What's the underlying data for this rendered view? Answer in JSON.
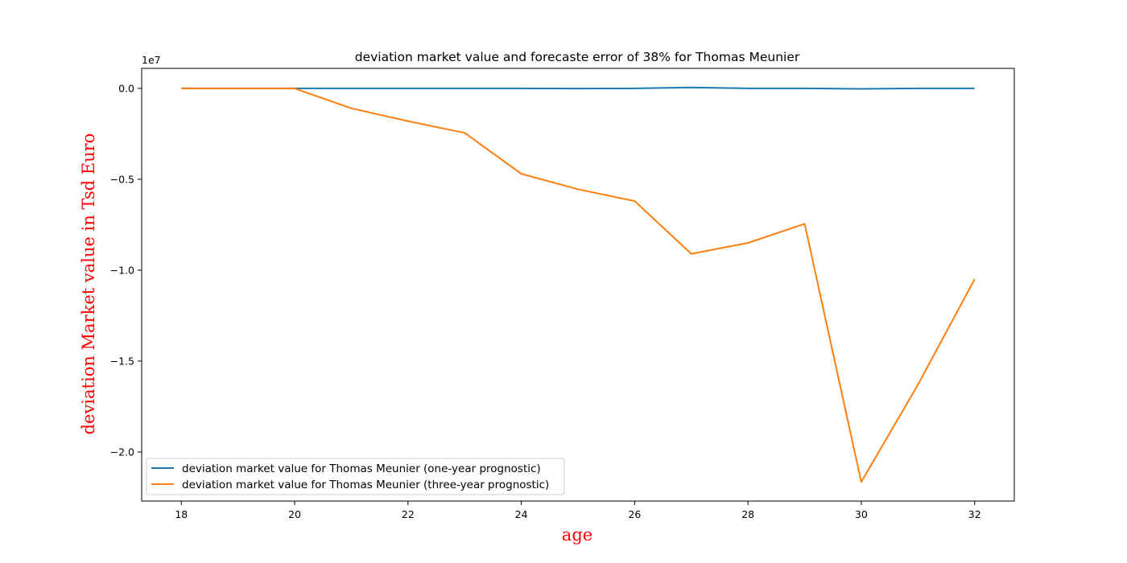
{
  "chart_data": {
    "type": "line",
    "title": "deviation market value and forecaste error of 38% for Thomas Meunier",
    "xlabel": "age",
    "ylabel": "deviation Market value in Tsd Euro",
    "y_offset_label": "1e7",
    "xlim": [
      17.3,
      32.7
    ],
    "ylim": [
      -2.27,
      0.11
    ],
    "x_ticks": [
      18,
      20,
      22,
      24,
      26,
      28,
      30,
      32
    ],
    "x_tick_labels": [
      "18",
      "20",
      "22",
      "24",
      "26",
      "28",
      "30",
      "32"
    ],
    "y_ticks": [
      0.0,
      -0.5,
      -1.0,
      -1.5,
      -2.0
    ],
    "y_tick_labels": [
      "0.0",
      "−0.5",
      "−1.0",
      "−1.5",
      "−2.0"
    ],
    "grid": false,
    "legend_position": "lower-left",
    "series": [
      {
        "name": "deviation market value for Thomas Meunier (one-year prognostic)",
        "color": "#1f77b4",
        "x": [
          18,
          19,
          20,
          21,
          22,
          23,
          24,
          25,
          26,
          27,
          28,
          29,
          30,
          31,
          32
        ],
        "y": [
          0.0,
          0.0,
          0.0,
          0.0,
          0.0,
          0.0,
          0.0,
          -0.001,
          0.0,
          0.005,
          0.0,
          0.0,
          -0.003,
          0.0,
          0.0
        ]
      },
      {
        "name": "deviation market value for Thomas Meunier (three-year prognostic)",
        "color": "#ff7f0e",
        "x": [
          18,
          19,
          20,
          21,
          22,
          23,
          24,
          25,
          26,
          27,
          28,
          29,
          30,
          31,
          32
        ],
        "y": [
          0.0,
          0.0,
          0.0,
          -0.11,
          -0.18,
          -0.245,
          -0.47,
          -0.555,
          -0.62,
          -0.91,
          -0.85,
          -0.745,
          -2.165,
          -1.63,
          -1.05
        ]
      }
    ]
  }
}
